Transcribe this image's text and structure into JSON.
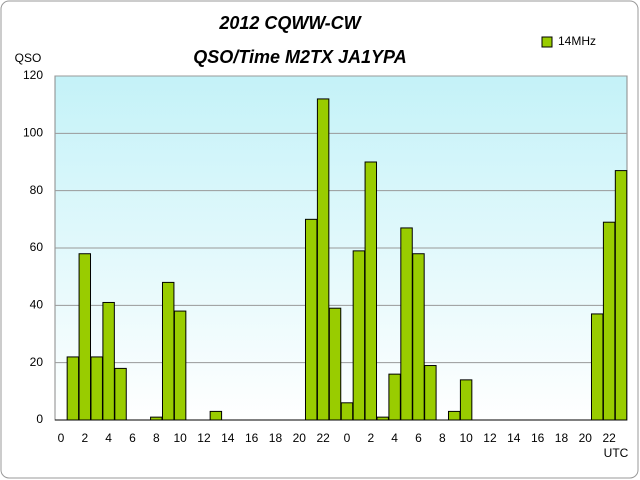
{
  "chart_data": {
    "type": "bar",
    "title": "2012  CQWW-CW",
    "subtitle": "QSO/Time  M2TX JA1YPA",
    "y_label": "QSO",
    "x_label": "UTC",
    "categories": [
      "0",
      null,
      "2",
      null,
      "4",
      null,
      "6",
      null,
      "8",
      null,
      "10",
      null,
      "12",
      null,
      "14",
      null,
      "16",
      null,
      "18",
      null,
      "20",
      null,
      "22",
      null,
      "0",
      null,
      "2",
      null,
      "4",
      null,
      "6",
      null,
      "8",
      null,
      "10",
      null,
      "12",
      null,
      "14",
      null,
      "16",
      null,
      "18",
      null,
      "20",
      null,
      "22",
      null
    ],
    "series": [
      {
        "name": "14MHz",
        "color": "#99cc00",
        "values": [
          0,
          22,
          58,
          22,
          41,
          18,
          0,
          0,
          1,
          48,
          38,
          0,
          0,
          3,
          0,
          0,
          0,
          0,
          0,
          0,
          0,
          70,
          112,
          39,
          6,
          59,
          90,
          1,
          16,
          67,
          58,
          19,
          0,
          3,
          14,
          0,
          0,
          0,
          0,
          0,
          0,
          0,
          0,
          0,
          0,
          37,
          69,
          87
        ]
      }
    ],
    "ylim": [
      0,
      120
    ],
    "yticks": [
      0,
      20,
      40,
      60,
      80,
      100,
      120
    ],
    "grid": true,
    "legend": "top-right"
  }
}
